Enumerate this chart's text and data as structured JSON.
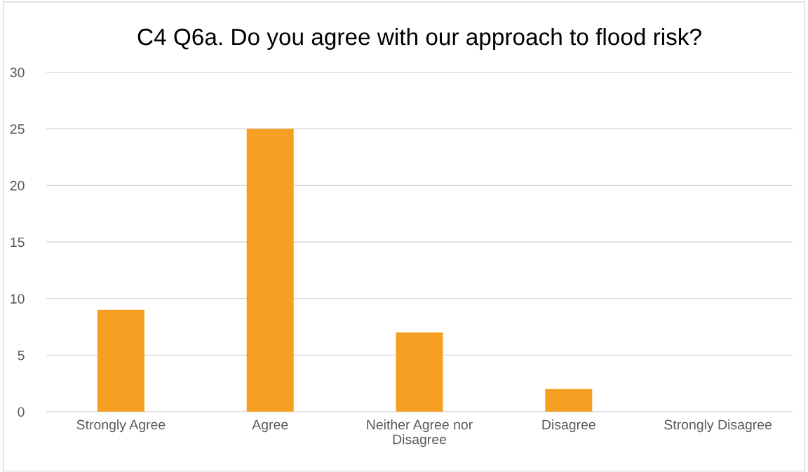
{
  "chart_data": {
    "type": "bar",
    "title": "C4 Q6a. Do you agree with our approach to flood risk?",
    "categories": [
      "Strongly Agree",
      "Agree",
      "Neither Agree nor\nDisagree",
      "Disagree",
      "Strongly Disagree"
    ],
    "values": [
      9,
      25,
      7,
      2,
      0
    ],
    "color": "#f5a023",
    "ylim": [
      0,
      30
    ],
    "yticks": [
      0,
      5,
      10,
      15,
      20,
      25,
      30
    ],
    "grid": "y",
    "legend": false
  }
}
